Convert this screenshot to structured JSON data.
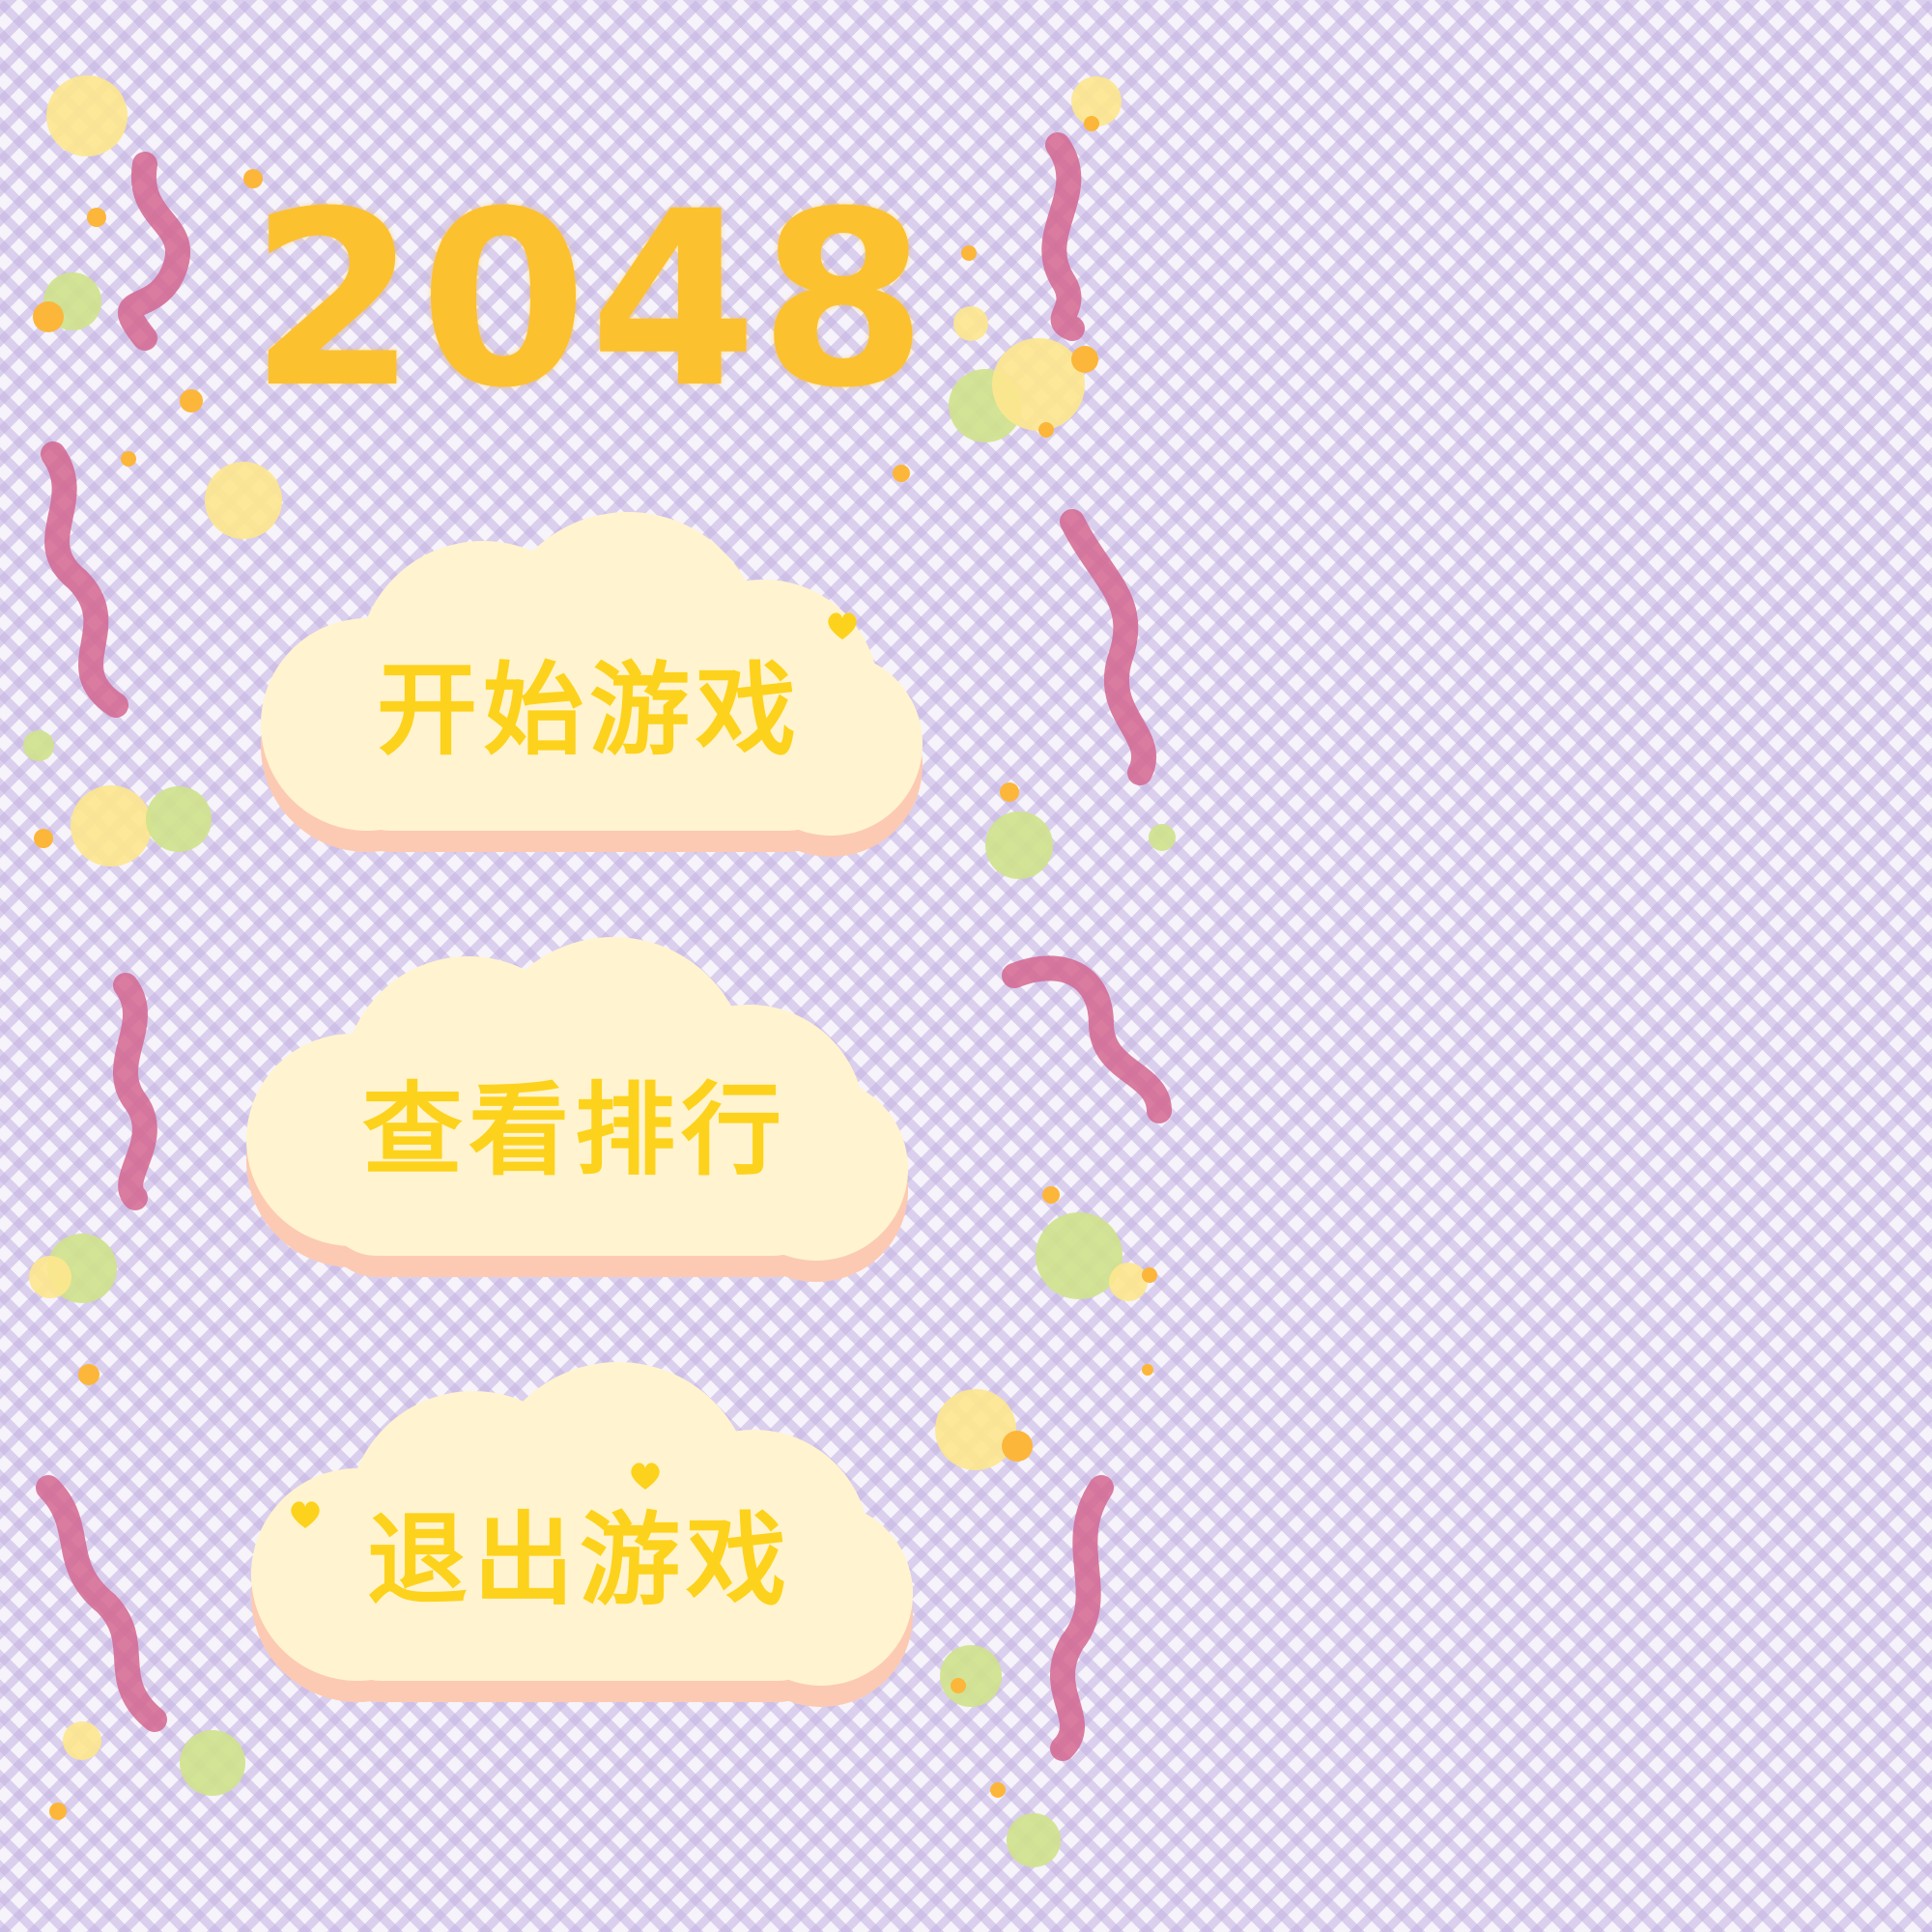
{
  "game": {
    "title": "2048"
  },
  "menu": {
    "start_label": "开始游戏",
    "rank_label": "查看排行",
    "quit_label": "退出游戏"
  },
  "colors": {
    "title": "#fcc12e",
    "button_text": "#fdd21c",
    "cloud_fill": "#fff4cf",
    "cloud_shadow": "#fccab2",
    "ribbon": "#d4668f",
    "dot_yellow": "#fde78d",
    "dot_green": "#cfe28b",
    "dot_orange": "#fcb63a",
    "pattern": "#c4b2e2"
  },
  "icons": {
    "heart": "heart-icon"
  }
}
